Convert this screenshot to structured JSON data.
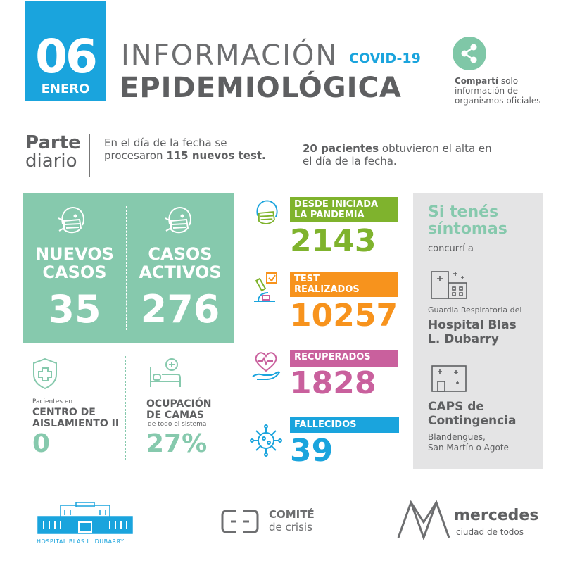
{
  "header": {
    "day": "06",
    "month": "ENERO",
    "title_line1": "INFORMACIÓN",
    "title_tag": "COVID-19",
    "title_line2": "EPIDEMIOLÓGICA",
    "share_strong": "Compartí",
    "share_rest": " solo",
    "share_line2": "información de",
    "share_line3": "organismos oficiales"
  },
  "parte": {
    "title_bold": "Parte",
    "title_light": "diario",
    "text1_a": "En el día de la fecha se procesaron ",
    "text1_b": "115 nuevos test.",
    "text2_a": "20 pacientes",
    "text2_b": " obtuvieron el alta en el día de la fecha."
  },
  "nuevos": {
    "label_1": "NUEVOS",
    "label_2": "CASOS",
    "value": "35"
  },
  "activos": {
    "label_1": "CASOS",
    "label_2": "ACTIVOS",
    "value": "276"
  },
  "aislamiento": {
    "pre": "Pacientes en",
    "label_1": "CENTRO DE",
    "label_2": "AISLAMIENTO II",
    "value": "0"
  },
  "camas": {
    "label_1": "OCUPACIÓN",
    "label_2": "DE CAMAS",
    "sub": "de todo el sistema",
    "value": "27%"
  },
  "stats": {
    "pandemia": {
      "label_1": "DESDE INICIADA",
      "label_2": "LA PANDEMIA",
      "value": "2143",
      "color": "#7fb32d"
    },
    "test": {
      "label_1": "TEST",
      "label_2": "REALIZADOS",
      "value": "10257",
      "color": "#f7931d"
    },
    "recuperados": {
      "label": "RECUPERADOS",
      "value": "1828",
      "color": "#c9609d"
    },
    "fallecidos": {
      "label": "FALLECIDOS",
      "value": "39",
      "color": "#1aa4dd"
    }
  },
  "right": {
    "title_1": "Si tenés",
    "title_2": "síntomas",
    "sub": "concurrí a",
    "guardia": "Guardia Respiratoria del",
    "hospital_1": "Hospital Blas",
    "hospital_2": "L. Dubarry",
    "caps_1": "CAPS de",
    "caps_2": "Contingencia",
    "caps_addr_1": "Blandengues,",
    "caps_addr_2": "San Martín o Agote"
  },
  "footer": {
    "hospital": "HOSPITAL BLAS L. DUBARRY",
    "comite_1": "COMITÉ",
    "comite_2": "de crisis",
    "mercedes_1": "mercedes",
    "mercedes_2": "ciudad de todos"
  },
  "colors": {
    "blue": "#1aa4dd",
    "green": "#86c9ad",
    "grey_text": "#5e5f61",
    "panel": "#e4e4e5"
  },
  "icons": [
    "share-icon",
    "mask-face-icon",
    "cross-shield-icon",
    "hospital-bed-icon",
    "microscope-icon",
    "heart-hand-icon",
    "virus-icon",
    "hospital-building-icon",
    "clinic-building-icon"
  ]
}
